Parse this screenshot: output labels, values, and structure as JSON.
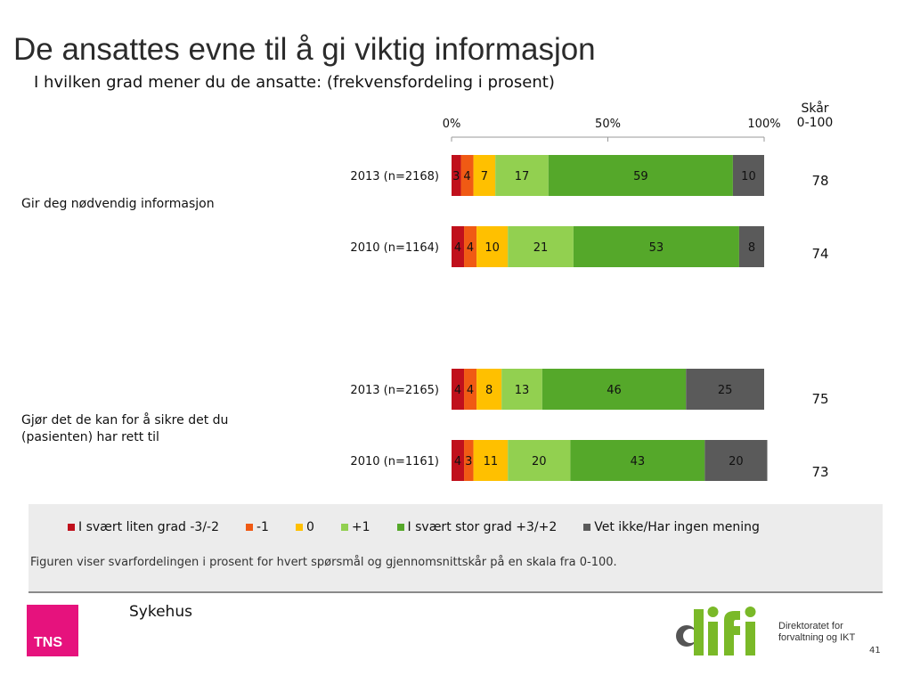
{
  "title": "De ansattes evne til å gi viktig informasjon",
  "subtitle": "I hvilken grad mener du de ansatte: (frekvensfordeling i prosent)",
  "score_header": "Skår\n0-100",
  "chart_data": {
    "type": "bar",
    "orientation": "horizontal-stacked-100",
    "xlim": [
      0,
      100
    ],
    "x_ticks": [
      "0%",
      "50%",
      "100%"
    ],
    "series_names": [
      "I svært liten grad -3/-2",
      "-1",
      "0",
      "+1",
      "I svært stor grad +3/+2",
      "Vet ikke/Har ingen mening"
    ],
    "colors": [
      "#c0101c",
      "#f05a14",
      "#ffc000",
      "#92d050",
      "#55a82a",
      "#5a5a5a"
    ],
    "questions": [
      {
        "label": "Gir deg nødvendig informasjon",
        "bars": [
          {
            "label": "2013 (n=2168)",
            "values": [
              3,
              4,
              7,
              17,
              59,
              10
            ],
            "score": 78
          },
          {
            "label": "2010 (n=1164)",
            "values": [
              4,
              4,
              10,
              21,
              53,
              8
            ],
            "score": 74
          }
        ]
      },
      {
        "label": "Gjør det de kan for å sikre det du (pasienten) har rett til",
        "bars": [
          {
            "label": "2013 (n=2165)",
            "values": [
              4,
              4,
              8,
              13,
              46,
              25
            ],
            "score": 75
          },
          {
            "label": "2010 (n=1161)",
            "values": [
              4,
              3,
              11,
              20,
              43,
              20
            ],
            "score": 73
          }
        ]
      }
    ]
  },
  "footnote": "Figuren viser svarfordelingen i prosent for hvert spørsmål og gjennomsnittskår på en skala fra 0-100.",
  "brand_logo": "TNS",
  "brand_color": "#e6127d",
  "segment_label": "Sykehus",
  "difi_logo": "difi",
  "difi_text_1": "Direktoratet for",
  "difi_text_2": "forvaltning og IKT",
  "page_number": "41"
}
